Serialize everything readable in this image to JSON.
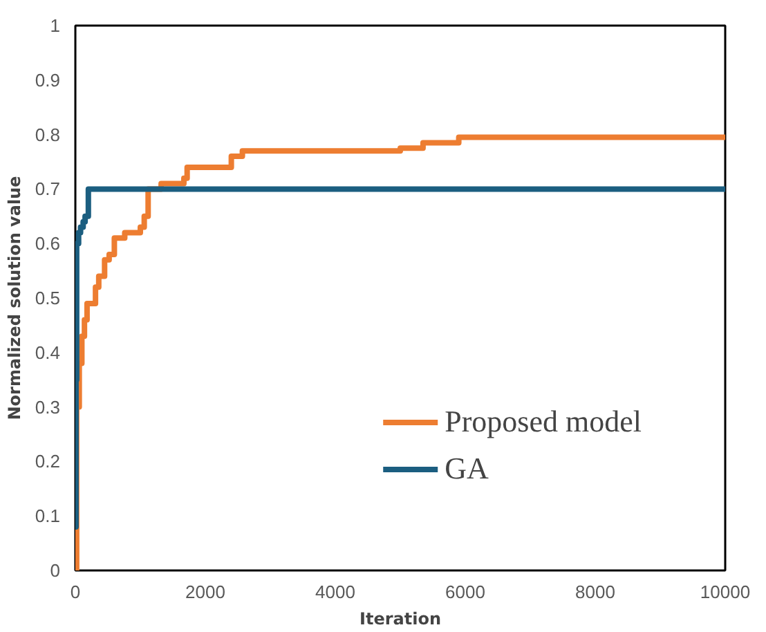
{
  "chart_data": {
    "type": "step",
    "xlabel": "Iteration",
    "ylabel": "Normalized solution value",
    "xlim": [
      0,
      10000
    ],
    "ylim": [
      0,
      1
    ],
    "xticks": [
      0,
      2000,
      4000,
      6000,
      8000,
      10000
    ],
    "yticks": [
      0,
      0.1,
      0.2,
      0.3,
      0.4,
      0.5,
      0.6,
      0.7,
      0.8,
      0.9,
      1
    ],
    "grid": false,
    "legend": "bottom right",
    "line_style": "solid",
    "marker": "none",
    "series": [
      {
        "name": "Proposed model",
        "color": "#ed7d31",
        "x": [
          0,
          20,
          60,
          100,
          140,
          180,
          310,
          360,
          450,
          520,
          600,
          760,
          1000,
          1060,
          1120,
          1320,
          1670,
          1720,
          2400,
          2570,
          5000,
          5350,
          5900,
          10000
        ],
        "values": [
          0,
          0.3,
          0.38,
          0.43,
          0.46,
          0.49,
          0.52,
          0.54,
          0.57,
          0.58,
          0.61,
          0.62,
          0.63,
          0.65,
          0.7,
          0.71,
          0.72,
          0.74,
          0.76,
          0.77,
          0.775,
          0.785,
          0.795,
          0.795
        ]
      },
      {
        "name": "GA",
        "color": "#1b5e80",
        "x": [
          0,
          10,
          20,
          50,
          80,
          120,
          150,
          200,
          10000
        ],
        "values": [
          0.08,
          0.35,
          0.6,
          0.62,
          0.63,
          0.64,
          0.65,
          0.7,
          0.7
        ]
      }
    ]
  }
}
